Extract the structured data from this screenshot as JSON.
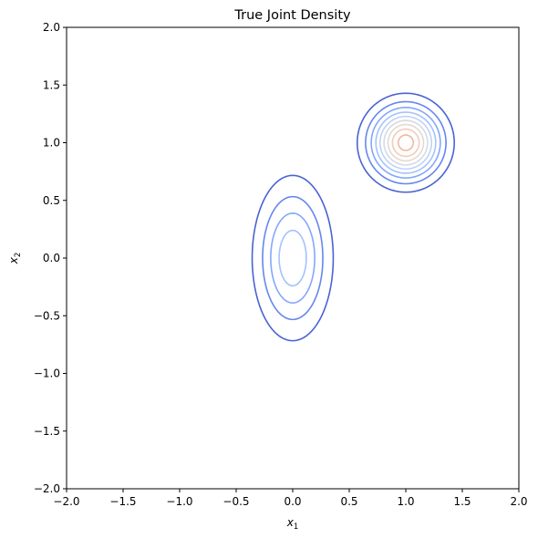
{
  "chart_data": {
    "type": "contour",
    "title": "True Joint Density",
    "xlabel": "x",
    "xlabel_sub": "1",
    "ylabel": "x",
    "ylabel_sub": "2",
    "xlim": [
      -2.0,
      2.0
    ],
    "ylim": [
      -2.0,
      2.0
    ],
    "xticks": [
      "−2.0",
      "−1.5",
      "−1.0",
      "−0.5",
      "0.0",
      "0.5",
      "1.0",
      "1.5",
      "2.0"
    ],
    "yticks": [
      "−2.0",
      "−1.5",
      "−1.0",
      "−0.5",
      "0.0",
      "0.5",
      "1.0",
      "1.5",
      "2.0"
    ],
    "xtick_values": [
      -2.0,
      -1.5,
      -1.0,
      -0.5,
      0.0,
      0.5,
      1.0,
      1.5,
      2.0
    ],
    "ytick_values": [
      -2.0,
      -1.5,
      -1.0,
      -0.5,
      0.0,
      0.5,
      1.0,
      1.5,
      2.0
    ],
    "grid": false,
    "colormap": "coolwarm",
    "components": [
      {
        "mean": [
          0.0,
          0.0
        ],
        "std": [
          0.2,
          0.4
        ],
        "weight": 0.5
      },
      {
        "mean": [
          1.0,
          1.0
        ],
        "std": [
          0.2,
          0.2
        ],
        "weight": 0.5
      }
    ],
    "levels": [
      0.2,
      0.41,
      0.62,
      0.83,
      1.04,
      1.25,
      1.46,
      1.67,
      1.88,
      2.09,
      2.3,
      2.51,
      2.72,
      2.93,
      3.14,
      3.35,
      3.56,
      3.77
    ],
    "level_colors": [
      "#4a63d3",
      "#6687ed",
      "#84a7fc",
      "#a3c2fe",
      "#bfd3f6",
      "#d4dbe6",
      "#e4d9d2",
      "#f1ccb8",
      "#f4b79c",
      "#f29f80",
      "#ec8466",
      "#e0654f",
      "#d1493f",
      "#c0282f",
      "#b40426",
      "#b40426",
      "#b40426",
      "#b40426"
    ]
  }
}
